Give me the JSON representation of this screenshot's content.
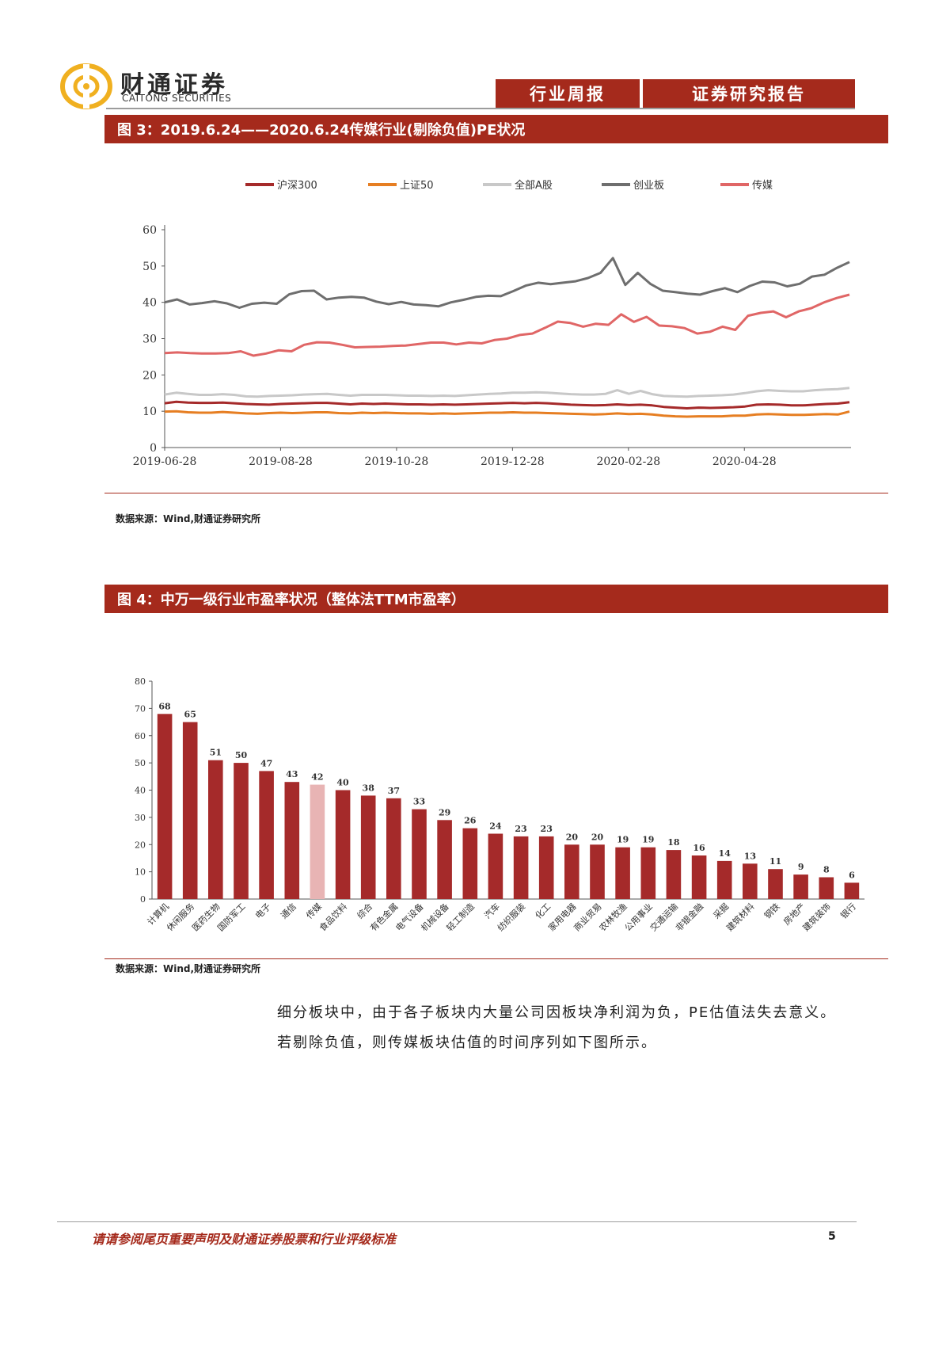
{
  "header": {
    "brand_cn": "财通证券",
    "brand_en": "CAITONG SECURITIES",
    "tag_weekly": "行业周报",
    "tag_report": "证券研究报告"
  },
  "figure3": {
    "title": "图 3：2019.6.24——2020.6.24传媒行业(剔除负值)PE状况",
    "source": "数据来源：Wind,财通证券研究所",
    "chart_data": {
      "type": "line",
      "x_ticks": [
        "2019-06-28",
        "2019-08-28",
        "2019-10-28",
        "2019-12-28",
        "2020-02-28",
        "2020-04-28"
      ],
      "ylim": [
        0,
        60
      ],
      "y_ticks": [
        0,
        10,
        20,
        30,
        40,
        50,
        60
      ],
      "legend_position": "top",
      "grid": false,
      "series": [
        {
          "name": "沪深300",
          "color": "#a52a2a",
          "values": [
            12.2,
            12.6,
            12.4,
            12.3,
            12.3,
            12.4,
            12.2,
            12.0,
            11.9,
            11.8,
            12.0,
            12.1,
            12.2,
            12.3,
            12.3,
            12.1,
            11.9,
            12.1,
            12.0,
            12.1,
            12.0,
            11.9,
            11.9,
            11.8,
            11.9,
            11.8,
            11.9,
            12.0,
            12.1,
            12.2,
            12.3,
            12.2,
            12.3,
            12.2,
            12.0,
            11.8,
            11.7,
            11.6,
            11.7,
            11.9,
            11.7,
            11.8,
            11.6,
            11.2,
            11.0,
            10.8,
            11.0,
            10.9,
            11.0,
            11.1,
            11.3,
            11.8,
            11.9,
            11.8,
            11.6,
            11.6,
            11.8,
            12.0,
            12.1,
            12.5
          ]
        },
        {
          "name": "上证50",
          "color": "#e67e22",
          "values": [
            9.9,
            10.0,
            9.7,
            9.6,
            9.6,
            9.8,
            9.6,
            9.4,
            9.3,
            9.5,
            9.6,
            9.5,
            9.6,
            9.7,
            9.7,
            9.5,
            9.4,
            9.6,
            9.5,
            9.6,
            9.5,
            9.4,
            9.4,
            9.3,
            9.4,
            9.3,
            9.4,
            9.5,
            9.6,
            9.6,
            9.7,
            9.6,
            9.6,
            9.5,
            9.4,
            9.3,
            9.2,
            9.1,
            9.2,
            9.4,
            9.2,
            9.3,
            9.1,
            8.8,
            8.6,
            8.5,
            8.6,
            8.6,
            8.6,
            8.8,
            8.8,
            9.1,
            9.2,
            9.1,
            9.0,
            9.0,
            9.1,
            9.2,
            9.1,
            9.9
          ]
        },
        {
          "name": "全部A股",
          "color": "#c8c8c8",
          "values": [
            14.6,
            15.1,
            14.8,
            14.5,
            14.5,
            14.7,
            14.5,
            14.1,
            14.0,
            14.2,
            14.3,
            14.4,
            14.6,
            14.7,
            14.8,
            14.5,
            14.3,
            14.5,
            14.5,
            14.5,
            14.4,
            14.3,
            14.3,
            14.2,
            14.3,
            14.2,
            14.4,
            14.6,
            14.8,
            14.9,
            15.1,
            15.1,
            15.2,
            15.1,
            14.9,
            14.7,
            14.6,
            14.6,
            14.8,
            15.8,
            14.8,
            15.6,
            14.7,
            14.2,
            14.1,
            14.0,
            14.2,
            14.3,
            14.4,
            14.6,
            15.0,
            15.5,
            15.8,
            15.6,
            15.5,
            15.5,
            15.8,
            16.0,
            16.1,
            16.4
          ]
        },
        {
          "name": "创业板",
          "color": "#6e6e6e",
          "values": [
            40.0,
            40.8,
            39.4,
            39.8,
            40.3,
            39.7,
            38.5,
            39.6,
            39.9,
            39.6,
            42.2,
            43.1,
            43.2,
            40.8,
            41.3,
            41.5,
            41.3,
            40.2,
            39.5,
            40.1,
            39.4,
            39.2,
            38.9,
            40.0,
            40.7,
            41.5,
            41.8,
            41.7,
            43.1,
            44.6,
            45.4,
            45.0,
            45.4,
            45.8,
            46.7,
            48.1,
            52.2,
            44.8,
            48.1,
            45.1,
            43.2,
            42.8,
            42.4,
            42.1,
            43.1,
            43.9,
            42.8,
            44.5,
            45.7,
            45.5,
            44.4,
            45.1,
            47.1,
            47.6,
            49.5,
            51.1
          ]
        },
        {
          "name": "传媒",
          "color": "#e06666",
          "values": [
            26.0,
            26.2,
            26.0,
            25.9,
            25.9,
            26.0,
            26.5,
            25.3,
            25.9,
            26.8,
            26.5,
            28.3,
            29.0,
            28.9,
            28.3,
            27.6,
            27.7,
            27.8,
            28.0,
            28.1,
            28.5,
            28.9,
            28.9,
            28.4,
            28.9,
            28.7,
            29.6,
            30.0,
            31.0,
            31.4,
            33.0,
            34.7,
            34.3,
            33.3,
            34.1,
            33.8,
            36.7,
            34.6,
            36.0,
            33.6,
            33.4,
            32.9,
            31.4,
            31.9,
            33.3,
            32.4,
            36.3,
            37.1,
            37.5,
            35.9,
            37.5,
            38.4,
            40.0,
            41.2,
            42.1
          ]
        }
      ]
    }
  },
  "figure4": {
    "title": "图 4：中万一级行业市盈率状况（整体法TTM市盈率）",
    "source": "数据来源：Wind,财通证券研究所",
    "chart_data": {
      "type": "bar",
      "ylim": [
        0,
        80
      ],
      "y_ticks": [
        0,
        10,
        20,
        30,
        40,
        50,
        60,
        70,
        80
      ],
      "bar_color": "#a52a2a",
      "highlight_color": "#e8b4b4",
      "highlight_category": "传媒",
      "categories": [
        "计算机",
        "休闲服务",
        "医药生物",
        "国防军工",
        "电子",
        "通信",
        "传媒",
        "食品饮料",
        "综合",
        "有色金属",
        "电气设备",
        "机械设备",
        "轻工制造",
        "汽车",
        "纺织服装",
        "化工",
        "家用电器",
        "商业贸易",
        "农林牧渔",
        "公用事业",
        "交通运输",
        "非银金融",
        "采掘",
        "建筑材料",
        "钢铁",
        "房地产",
        "建筑装饰",
        "银行"
      ],
      "values": [
        68,
        65,
        51,
        50,
        47,
        43,
        42,
        40,
        38,
        37,
        33,
        29,
        26,
        24,
        23,
        23,
        20,
        20,
        19,
        19,
        18,
        16,
        14,
        13,
        11,
        9,
        8,
        6
      ]
    }
  },
  "body": {
    "para1": "细分板块中，由于各子板块内大量公司因板块净利润为负，PE估值法失去意义。",
    "para2": "若剔除负值，则传媒板块估值的时间序列如下图所示。"
  },
  "footer": {
    "note": "请请参阅尾页重要声明及财通证券股票和行业评级标准",
    "page": "5"
  }
}
